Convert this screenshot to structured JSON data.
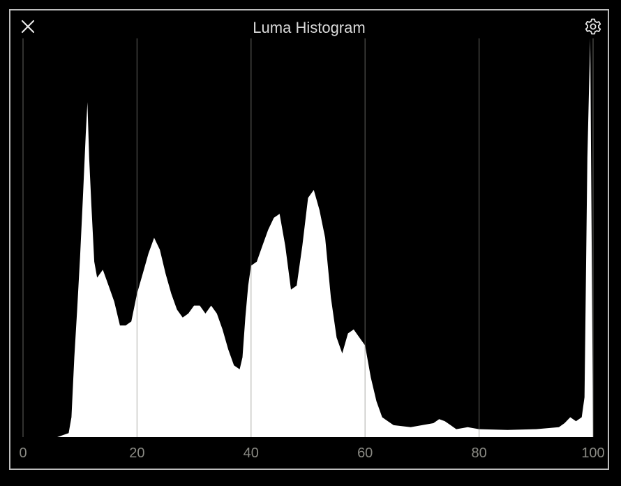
{
  "panel": {
    "title": "Luma Histogram",
    "close_icon": "close-icon",
    "settings_icon": "gear-icon"
  },
  "colors": {
    "background": "#000000",
    "fill": "#ffffff",
    "grid": "#8c8c86",
    "tick_text": "#8a8a84",
    "border": "#bdbdbd"
  },
  "chart_data": {
    "type": "area",
    "xlim": [
      0,
      100
    ],
    "ylim": [
      0,
      1
    ],
    "grid": true,
    "x_ticks": [
      "0",
      "20",
      "40",
      "60",
      "80",
      "100"
    ],
    "x": [
      0,
      6,
      7,
      8,
      8.5,
      9,
      9.5,
      10,
      10.5,
      11,
      11.3,
      11.6,
      12,
      12.5,
      13,
      14,
      15,
      16,
      17,
      18,
      19,
      20,
      21,
      22,
      23,
      24,
      25,
      26,
      27,
      28,
      29,
      30,
      31,
      32,
      33,
      34,
      35,
      36,
      37,
      38,
      38.5,
      39,
      39.5,
      40,
      41,
      42,
      43,
      44,
      45,
      46,
      47,
      48,
      49,
      50,
      51,
      52,
      53,
      54,
      55,
      56,
      57,
      58,
      59,
      60,
      61,
      62,
      63,
      64,
      65,
      68,
      70,
      72,
      73,
      74,
      75,
      76,
      78,
      80,
      85,
      90,
      94,
      95,
      96,
      97,
      98,
      98.5,
      99,
      99.5,
      100
    ],
    "y": [
      0,
      0,
      0.005,
      0.01,
      0.05,
      0.2,
      0.32,
      0.45,
      0.6,
      0.76,
      0.84,
      0.7,
      0.58,
      0.44,
      0.4,
      0.42,
      0.38,
      0.34,
      0.28,
      0.28,
      0.29,
      0.36,
      0.41,
      0.46,
      0.5,
      0.47,
      0.41,
      0.36,
      0.32,
      0.3,
      0.31,
      0.33,
      0.33,
      0.31,
      0.33,
      0.31,
      0.27,
      0.22,
      0.18,
      0.17,
      0.2,
      0.3,
      0.38,
      0.43,
      0.44,
      0.48,
      0.52,
      0.55,
      0.56,
      0.48,
      0.37,
      0.38,
      0.48,
      0.6,
      0.62,
      0.57,
      0.5,
      0.35,
      0.25,
      0.21,
      0.26,
      0.27,
      0.25,
      0.23,
      0.15,
      0.09,
      0.05,
      0.04,
      0.03,
      0.025,
      0.03,
      0.035,
      0.045,
      0.04,
      0.03,
      0.02,
      0.025,
      0.02,
      0.018,
      0.02,
      0.025,
      0.035,
      0.05,
      0.04,
      0.05,
      0.1,
      0.7,
      1,
      0
    ]
  }
}
